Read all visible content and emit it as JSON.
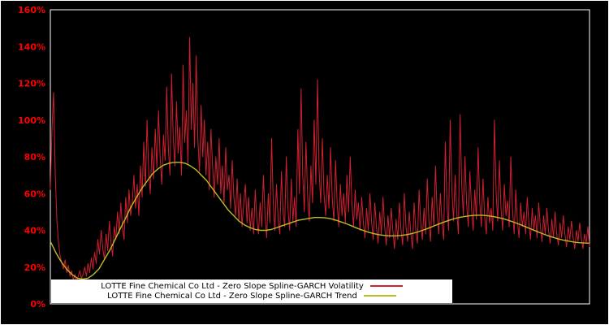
{
  "figure": {
    "background": "#000000",
    "border_color": "#ffffff",
    "plot_border_color": "#ffffff"
  },
  "axes": {
    "y_ticks": [
      "0%",
      "20%",
      "40%",
      "60%",
      "80%",
      "100%",
      "120%",
      "140%",
      "160%"
    ],
    "y_tick_color": "#ff0000",
    "y_min": 0,
    "y_max": 160,
    "x_ticks": []
  },
  "chart_data": {
    "type": "line",
    "title": "",
    "xlabel": "",
    "ylabel": "",
    "y_unit": "%",
    "ylim": [
      0,
      160
    ],
    "grid": false,
    "legend_position": "bottom-center",
    "series": [
      {
        "name": "LOTTE Fine Chemical Co Ltd - Zero Slope Spline-GARCH Volatility",
        "color": "#d02030",
        "values": [
          62,
          95,
          115,
          70,
          45,
          33,
          26,
          22,
          19,
          24,
          17,
          21,
          15,
          18,
          13,
          16,
          12,
          15,
          18,
          14,
          16,
          20,
          15,
          22,
          17,
          25,
          19,
          28,
          22,
          35,
          27,
          40,
          30,
          24,
          38,
          29,
          45,
          33,
          26,
          42,
          35,
          50,
          38,
          55,
          42,
          35,
          58,
          44,
          62,
          48,
          55,
          70,
          52,
          65,
          48,
          75,
          58,
          88,
          64,
          100,
          72,
          60,
          85,
          68,
          95,
          74,
          105,
          80,
          65,
          92,
          78,
          118,
          85,
          70,
          125,
          90,
          75,
          110,
          82,
          96,
          70,
          130,
          88,
          105,
          76,
          145,
          95,
          120,
          85,
          135,
          90,
          72,
          108,
          80,
          100,
          70,
          88,
          62,
          95,
          75,
          58,
          80,
          65,
          90,
          60,
          75,
          55,
          85,
          62,
          70,
          52,
          78,
          58,
          48,
          68,
          45,
          60,
          42,
          55,
          65,
          44,
          58,
          40,
          52,
          38,
          62,
          46,
          38,
          55,
          42,
          70,
          48,
          36,
          60,
          44,
          90,
          55,
          40,
          65,
          46,
          38,
          72,
          50,
          42,
          80,
          52,
          40,
          68,
          45,
          58,
          42,
          95,
          60,
          117,
          70,
          50,
          88,
          58,
          45,
          75,
          55,
          100,
          65,
          122,
          72,
          55,
          90,
          60,
          48,
          70,
          52,
          85,
          58,
          45,
          78,
          55,
          42,
          65,
          48,
          60,
          44,
          70,
          50,
          80,
          55,
          42,
          62,
          46,
          55,
          40,
          58,
          44,
          36,
          52,
          40,
          60,
          45,
          35,
          55,
          42,
          33,
          50,
          38,
          58,
          42,
          32,
          48,
          36,
          52,
          40,
          30,
          46,
          35,
          55,
          40,
          32,
          60,
          42,
          34,
          50,
          38,
          30,
          55,
          40,
          33,
          62,
          44,
          35,
          52,
          38,
          68,
          45,
          34,
          58,
          42,
          75,
          50,
          38,
          60,
          44,
          35,
          88,
          55,
          40,
          100,
          62,
          45,
          70,
          50,
          38,
          103,
          65,
          48,
          80,
          55,
          42,
          72,
          52,
          40,
          62,
          46,
          85,
          55,
          42,
          68,
          48,
          38,
          58,
          44,
          52,
          40,
          100,
          60,
          45,
          78,
          52,
          40,
          65,
          48,
          56,
          42,
          80,
          52,
          38,
          62,
          45,
          36,
          55,
          42,
          50,
          38,
          58,
          44,
          35,
          52,
          40,
          48,
          36,
          55,
          42,
          34,
          48,
          38,
          52,
          40,
          33,
          46,
          36,
          50,
          38,
          32,
          44,
          36,
          48,
          38,
          31,
          42,
          35,
          45,
          36,
          30,
          40,
          34,
          44,
          36,
          30,
          38,
          33,
          42,
          31
        ]
      },
      {
        "name": "LOTTE Fine Chemical Co Ltd - Zero Slope Spline-GARCH Trend",
        "color": "#bcbd22",
        "values": [
          34,
          28,
          23,
          19,
          16,
          14,
          13.5,
          14,
          16,
          19,
          24,
          29,
          35,
          41,
          47,
          53,
          58,
          63,
          67,
          71,
          73.5,
          75.5,
          76.5,
          77,
          77,
          76.5,
          75,
          73,
          70,
          67,
          63,
          59,
          55,
          51,
          48,
          45,
          43,
          41.5,
          40.5,
          40,
          40,
          40.5,
          41.5,
          42.5,
          43.5,
          44.5,
          45.5,
          46,
          46.5,
          47,
          47,
          46.8,
          46.3,
          45.5,
          44.5,
          43.5,
          42.3,
          41,
          40,
          39,
          38.2,
          37.6,
          37.2,
          37,
          37,
          37.2,
          37.6,
          38.2,
          39,
          40,
          41,
          42.2,
          43.4,
          44.5,
          45.5,
          46.4,
          47.1,
          47.6,
          48,
          48.2,
          48.2,
          48,
          47.6,
          47,
          46.3,
          45.4,
          44.4,
          43.3,
          42.1,
          40.9,
          39.7,
          38.5,
          37.4,
          36.4,
          35.5,
          34.8,
          34.2,
          33.7,
          33.3,
          33.1,
          33
        ]
      }
    ]
  },
  "legend": {
    "background": "#ffffff",
    "text_color": "#000000"
  }
}
